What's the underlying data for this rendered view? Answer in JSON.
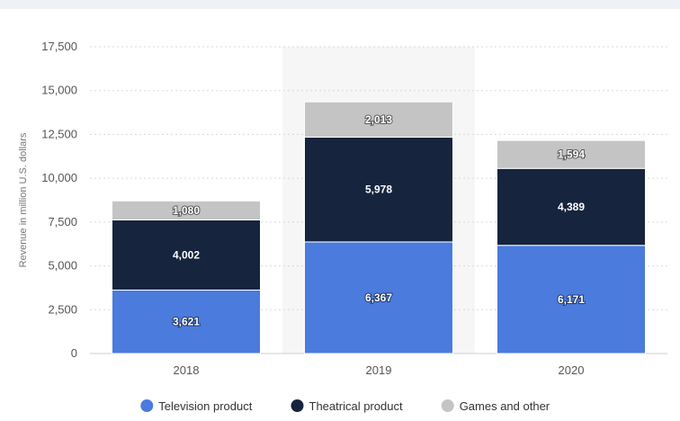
{
  "chart_data": {
    "type": "bar",
    "stacked": true,
    "categories": [
      "2018",
      "2019",
      "2020"
    ],
    "series": [
      {
        "name": "Television product",
        "values": [
          3621,
          6367,
          6171
        ],
        "labels": [
          "3,621",
          "6,367",
          "6,171"
        ],
        "color": "#4a7bdd"
      },
      {
        "name": "Theatrical product",
        "values": [
          4002,
          5978,
          4389
        ],
        "labels": [
          "4,002",
          "5,978",
          "4,389"
        ],
        "color": "#16243d"
      },
      {
        "name": "Games and other",
        "values": [
          1080,
          2013,
          1594
        ],
        "labels": [
          "1,080",
          "2,013",
          "1,594"
        ],
        "color": "#c4c4c4"
      }
    ],
    "ylabel": "Revenue in million U.S. dollars",
    "ylim": [
      0,
      17500
    ],
    "yticks": [
      0,
      2500,
      5000,
      7500,
      10000,
      12500,
      15000,
      17500
    ],
    "ytick_labels": [
      "0",
      "2,500",
      "5,000",
      "7,500",
      "10,000",
      "12,500",
      "15,000",
      "17,500"
    ],
    "grid": true,
    "highlighted_category": "2019",
    "legend_position": "bottom"
  }
}
